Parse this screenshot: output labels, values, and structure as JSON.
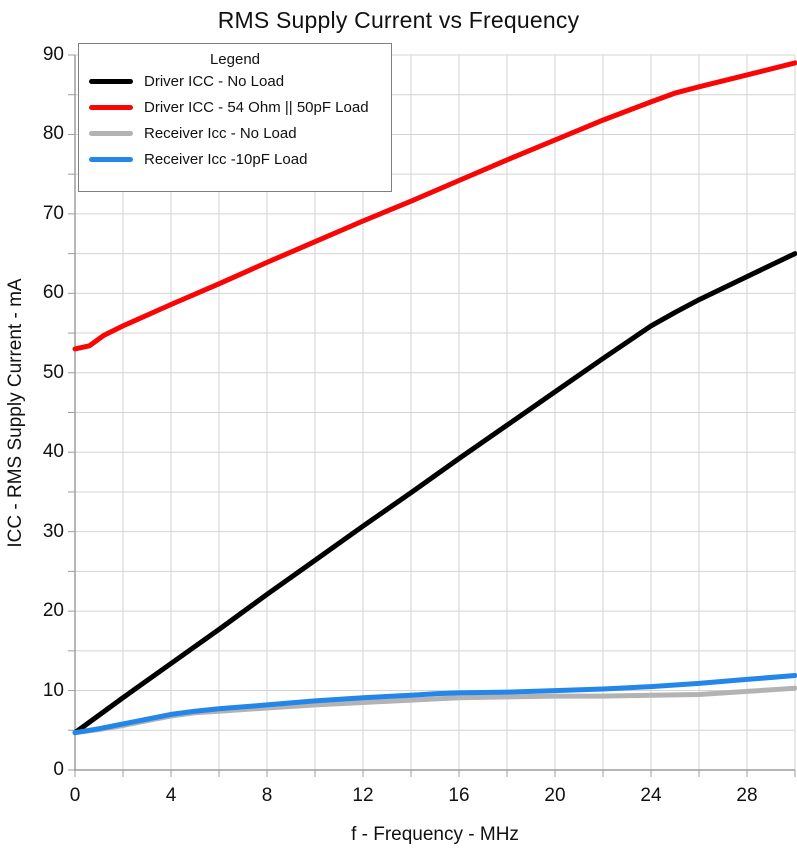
{
  "chart_data": {
    "type": "line",
    "title": "RMS Supply Current vs Frequency",
    "xlabel": "f - Frequency - MHz",
    "ylabel": "ICC - RMS Supply Current - mA",
    "xlim": [
      0,
      30
    ],
    "ylim": [
      0,
      90
    ],
    "x_major_ticks": [
      0,
      4,
      8,
      12,
      16,
      20,
      24,
      28
    ],
    "y_major_ticks": [
      0,
      10,
      20,
      30,
      40,
      50,
      60,
      70,
      80,
      90
    ],
    "x_grid_step": 2,
    "y_grid_step": 5,
    "grid": true,
    "legend": {
      "title": "Legend",
      "position": "top-left"
    },
    "series": [
      {
        "name": "Driver ICC - No Load",
        "color": "#000000",
        "x": [
          0,
          2,
          4,
          6,
          8,
          10,
          12,
          14,
          16,
          18,
          20,
          22,
          24,
          25,
          26,
          28,
          30
        ],
        "y": [
          4.7,
          9.1,
          13.4,
          17.7,
          22.1,
          26.4,
          30.7,
          34.9,
          39.2,
          43.4,
          47.6,
          51.8,
          55.9,
          57.6,
          59.2,
          62.1,
          65
        ]
      },
      {
        "name": "Driver ICC - 54 Ohm || 50pF Load",
        "color": "#fa0505",
        "x": [
          0,
          0.6,
          1.2,
          2,
          4,
          6,
          8,
          10,
          12,
          14,
          16,
          18,
          20,
          22,
          24,
          25,
          26,
          28,
          30
        ],
        "y": [
          53,
          53.4,
          54.7,
          55.9,
          58.6,
          61.2,
          63.9,
          66.5,
          69.1,
          71.6,
          74.2,
          76.8,
          79.3,
          81.8,
          84.1,
          85.2,
          86,
          87.5,
          89
        ]
      },
      {
        "name": "Receiver Icc - No Load",
        "color": "#b3b3b3",
        "x": [
          0,
          1,
          2,
          3,
          4,
          5,
          6,
          8,
          10,
          12,
          14,
          16,
          18,
          20,
          22,
          24,
          26,
          28,
          30
        ],
        "y": [
          4.7,
          5.1,
          5.6,
          6.2,
          6.8,
          7.2,
          7.4,
          7.8,
          8.2,
          8.5,
          8.8,
          9.1,
          9.2,
          9.3,
          9.3,
          9.4,
          9.5,
          9.9,
          10.3
        ]
      },
      {
        "name": "Receiver Icc -10pF Load",
        "color": "#2287e8",
        "x": [
          0,
          1,
          2,
          3,
          4,
          5,
          6,
          8,
          10,
          12,
          14,
          15,
          16,
          18,
          20,
          22,
          24,
          26,
          28,
          30
        ],
        "y": [
          4.7,
          5.2,
          5.8,
          6.4,
          7.0,
          7.4,
          7.7,
          8.2,
          8.7,
          9.1,
          9.4,
          9.6,
          9.7,
          9.8,
          10.0,
          10.2,
          10.5,
          10.9,
          11.4,
          11.9
        ]
      }
    ]
  }
}
